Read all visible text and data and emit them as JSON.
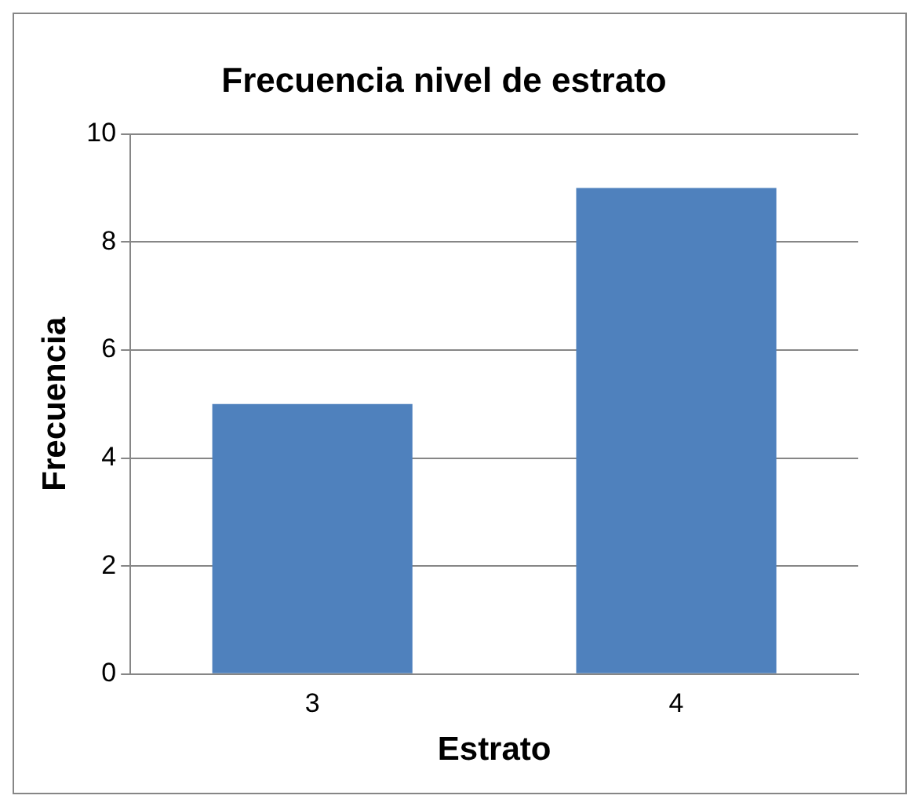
{
  "chart_data": {
    "type": "bar",
    "title": "Frecuencia nivel de estrato",
    "xlabel": "Estrato",
    "ylabel": "Frecuencia",
    "categories": [
      "3",
      "4"
    ],
    "values": [
      5,
      9
    ],
    "color": "#4f81bd",
    "ylim": [
      0,
      10
    ],
    "yticks": [
      0,
      2,
      4,
      6,
      8,
      10
    ],
    "grid": "y"
  }
}
